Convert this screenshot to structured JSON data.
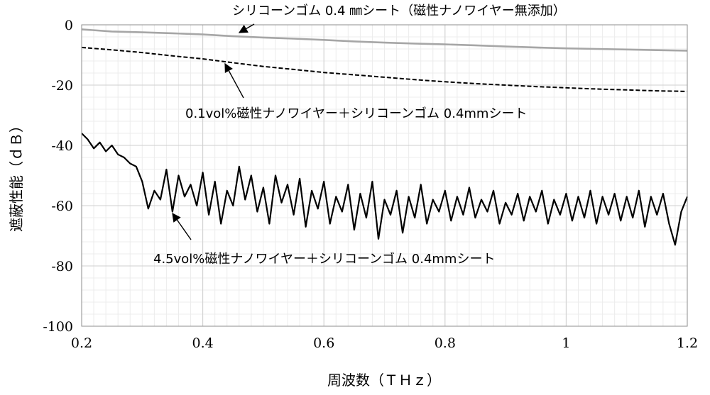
{
  "chart_data": {
    "type": "line",
    "xlabel": "周波数（ＴＨｚ）",
    "ylabel": "遮蔽性能（ｄＢ）",
    "xlim": [
      0.2,
      1.2
    ],
    "ylim": [
      -100,
      0
    ],
    "x_ticks": [
      {
        "value": 0.2,
        "label": "0.2"
      },
      {
        "value": 0.4,
        "label": "0.4"
      },
      {
        "value": 0.6,
        "label": "0.6"
      },
      {
        "value": 0.8,
        "label": "0.8"
      },
      {
        "value": 1.0,
        "label": "1"
      },
      {
        "value": 1.2,
        "label": "1.2"
      }
    ],
    "y_ticks": [
      {
        "value": 0,
        "label": "0"
      },
      {
        "value": -20,
        "label": "-20"
      },
      {
        "value": -40,
        "label": "-40"
      },
      {
        "value": -60,
        "label": "-60"
      },
      {
        "value": -80,
        "label": "-80"
      },
      {
        "value": -100,
        "label": "-100"
      }
    ],
    "grid": true,
    "legend": "none",
    "series": [
      {
        "style": "solid-gray",
        "color": "#a6a6a6",
        "x": [
          0.2,
          0.25,
          0.3,
          0.35,
          0.4,
          0.45,
          0.5,
          0.55,
          0.6,
          0.65,
          0.7,
          0.75,
          0.8,
          0.85,
          0.9,
          0.95,
          1.0,
          1.05,
          1.1,
          1.15,
          1.2
        ],
        "y": [
          -1.5,
          -2.2,
          -2.5,
          -2.8,
          -3.2,
          -3.8,
          -4.2,
          -4.6,
          -5.0,
          -5.5,
          -5.9,
          -6.2,
          -6.5,
          -6.8,
          -7.2,
          -7.5,
          -7.8,
          -8.0,
          -8.2,
          -8.4,
          -8.6
        ]
      },
      {
        "style": "dashed-black",
        "color": "#000000",
        "x": [
          0.2,
          0.25,
          0.3,
          0.35,
          0.4,
          0.45,
          0.5,
          0.55,
          0.6,
          0.65,
          0.7,
          0.75,
          0.8,
          0.85,
          0.9,
          0.95,
          1.0,
          1.05,
          1.1,
          1.15,
          1.2
        ],
        "y": [
          -7.5,
          -8.3,
          -9.2,
          -10.3,
          -11.3,
          -12.6,
          -13.8,
          -14.8,
          -15.8,
          -16.6,
          -17.4,
          -18.2,
          -18.9,
          -19.5,
          -20.0,
          -20.5,
          -20.9,
          -21.3,
          -21.6,
          -21.9,
          -22.1
        ]
      },
      {
        "style": "solid-black",
        "color": "#000000",
        "x": [
          0.2,
          0.21,
          0.22,
          0.23,
          0.24,
          0.25,
          0.26,
          0.27,
          0.28,
          0.29,
          0.3,
          0.31,
          0.32,
          0.33,
          0.34,
          0.35,
          0.36,
          0.37,
          0.38,
          0.39,
          0.4,
          0.41,
          0.42,
          0.43,
          0.44,
          0.45,
          0.46,
          0.47,
          0.48,
          0.49,
          0.5,
          0.51,
          0.52,
          0.53,
          0.54,
          0.55,
          0.56,
          0.57,
          0.58,
          0.59,
          0.6,
          0.61,
          0.62,
          0.63,
          0.64,
          0.65,
          0.66,
          0.67,
          0.68,
          0.69,
          0.7,
          0.71,
          0.72,
          0.73,
          0.74,
          0.75,
          0.76,
          0.77,
          0.78,
          0.79,
          0.8,
          0.81,
          0.82,
          0.83,
          0.84,
          0.85,
          0.86,
          0.87,
          0.88,
          0.89,
          0.9,
          0.91,
          0.92,
          0.93,
          0.94,
          0.95,
          0.96,
          0.97,
          0.98,
          0.99,
          1.0,
          1.01,
          1.02,
          1.03,
          1.04,
          1.05,
          1.06,
          1.07,
          1.08,
          1.09,
          1.1,
          1.11,
          1.12,
          1.13,
          1.14,
          1.15,
          1.16,
          1.17,
          1.18,
          1.19,
          1.2
        ],
        "y": [
          -36,
          -38,
          -41,
          -39,
          -42,
          -40,
          -43,
          -44,
          -46,
          -47,
          -52,
          -61,
          -55,
          -58,
          -48,
          -62,
          -50,
          -57,
          -53,
          -60,
          -49,
          -63,
          -52,
          -66,
          -55,
          -60,
          -47,
          -58,
          -50,
          -62,
          -54,
          -66,
          -50,
          -59,
          -53,
          -63,
          -51,
          -67,
          -55,
          -61,
          -52,
          -66,
          -57,
          -62,
          -53,
          -68,
          -56,
          -64,
          -52,
          -71,
          -58,
          -63,
          -55,
          -69,
          -57,
          -64,
          -53,
          -66,
          -58,
          -62,
          -55,
          -65,
          -57,
          -63,
          -54,
          -64,
          -58,
          -62,
          -55,
          -66,
          -59,
          -63,
          -56,
          -65,
          -57,
          -62,
          -55,
          -66,
          -58,
          -63,
          -56,
          -65,
          -57,
          -64,
          -55,
          -66,
          -57,
          -63,
          -56,
          -65,
          -57,
          -64,
          -55,
          -67,
          -57,
          -63,
          -56,
          -66,
          -73,
          -62,
          -57
        ]
      }
    ],
    "annotations": [
      {
        "text": "シリコーンゴム 0.4 ㎜シート（磁性ナノワイヤー無添加）"
      },
      {
        "text": "0.1vol%磁性ナノワイヤー＋シリコーンゴム 0.4mmシート"
      },
      {
        "text": "4.5vol%磁性ナノワイヤー＋シリコーンゴム 0.4mmシート"
      }
    ]
  }
}
